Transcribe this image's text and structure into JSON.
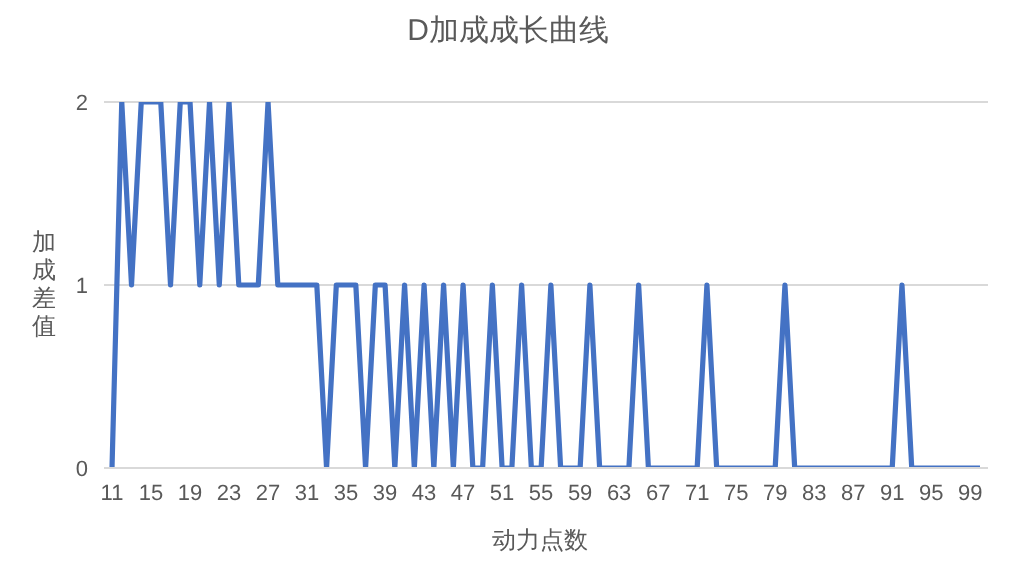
{
  "chart_data": {
    "type": "line",
    "title": "D加成成长曲线",
    "xlabel": "动力点数",
    "ylabel": "加成差值",
    "categories": [
      "11",
      null,
      null,
      null,
      "15",
      null,
      null,
      null,
      "19",
      null,
      null,
      null,
      "23",
      null,
      null,
      null,
      "27",
      null,
      null,
      null,
      "31",
      null,
      null,
      null,
      "35",
      null,
      null,
      null,
      "39",
      null,
      null,
      null,
      "43",
      null,
      null,
      null,
      "47",
      null,
      null,
      null,
      "51",
      null,
      null,
      null,
      "55",
      null,
      null,
      null,
      "59",
      null,
      null,
      null,
      "63",
      null,
      null,
      null,
      "67",
      null,
      null,
      null,
      "71",
      null,
      null,
      null,
      "75",
      null,
      null,
      null,
      "79",
      null,
      null,
      null,
      "83",
      null,
      null,
      null,
      "87",
      null,
      null,
      null,
      "91",
      null,
      null,
      null,
      "95",
      null,
      null,
      null,
      "99",
      null
    ],
    "series": [
      {
        "color": "#4472c4",
        "values": [
          0,
          2,
          1,
          2,
          2,
          2,
          1,
          2,
          2,
          1,
          2,
          1,
          2,
          1,
          1,
          1,
          2,
          1,
          1,
          1,
          1,
          1,
          0,
          1,
          1,
          1,
          0,
          1,
          1,
          0,
          1,
          0,
          1,
          0,
          1,
          0,
          1,
          0,
          0,
          1,
          0,
          0,
          1,
          0,
          0,
          1,
          0,
          0,
          0,
          1,
          0,
          0,
          0,
          0,
          1,
          0,
          0,
          0,
          0,
          0,
          0,
          1,
          0,
          0,
          0,
          0,
          0,
          0,
          0,
          1,
          0,
          0,
          0,
          0,
          0,
          0,
          0,
          0,
          0,
          0,
          0,
          1,
          0,
          0,
          0,
          0,
          0,
          0,
          0,
          0
        ]
      }
    ],
    "ylim": [
      0,
      2
    ],
    "yticks": [
      0,
      1,
      2
    ],
    "grid": "y",
    "legend": false,
    "marker": "none",
    "line_style": "solid"
  }
}
